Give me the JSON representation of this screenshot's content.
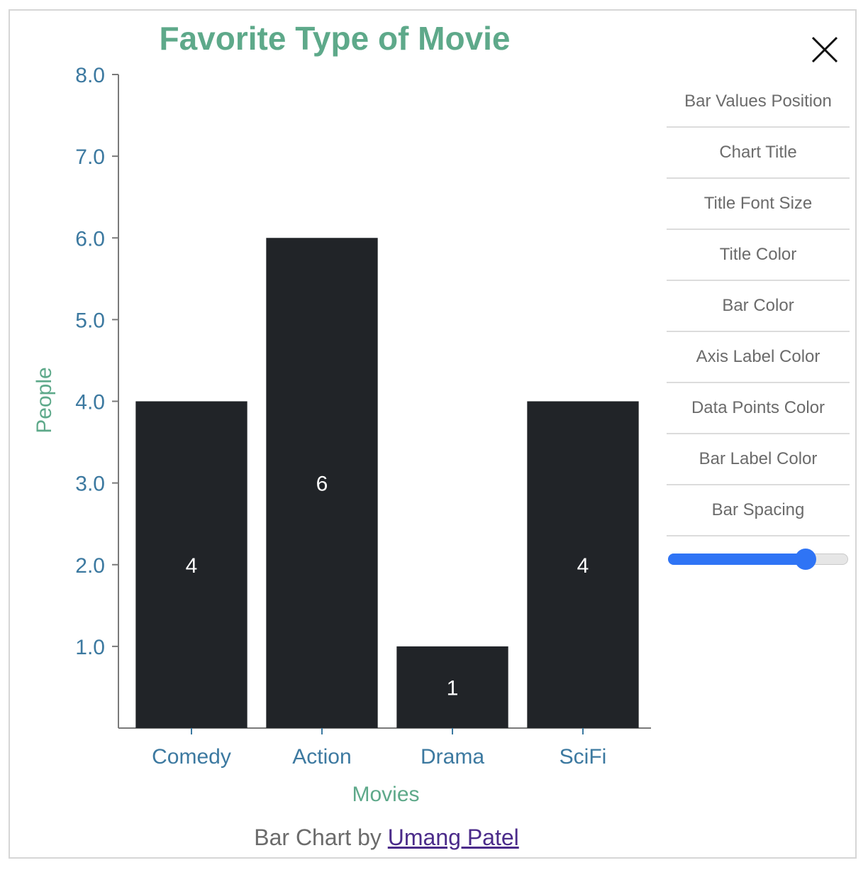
{
  "chart_data": {
    "type": "bar",
    "title": "Favorite Type of Movie",
    "xlabel": "Movies",
    "ylabel": "People",
    "categories": [
      "Comedy",
      "Action",
      "Drama",
      "SciFi"
    ],
    "values": [
      4,
      6,
      1,
      4
    ],
    "value_labels": [
      "4",
      "6",
      "1",
      "4"
    ],
    "ylim": [
      0,
      8
    ],
    "y_ticks": [
      "1.0",
      "2.0",
      "3.0",
      "4.0",
      "5.0",
      "6.0",
      "7.0",
      "8.0"
    ],
    "grid": false,
    "bar_value_position": "center",
    "colors": {
      "title": "#5ea98a",
      "axis_label": "#5ea98a",
      "tick_label": "#3c79a0",
      "bar": "#212428",
      "bar_label": "#ffffff",
      "axis_line": "#7a7a7a"
    }
  },
  "close_icon": "close-icon",
  "menu": {
    "items": [
      {
        "label": "Bar Values Position"
      },
      {
        "label": "Chart Title"
      },
      {
        "label": "Title Font Size"
      },
      {
        "label": "Title Color"
      },
      {
        "label": "Bar Color"
      },
      {
        "label": "Axis Label Color"
      },
      {
        "label": "Data Points Color"
      },
      {
        "label": "Bar Label Color"
      },
      {
        "label": "Bar Spacing"
      }
    ]
  },
  "bar_spacing_slider": {
    "value": 0.8,
    "color": "#2f74f5"
  },
  "footer": {
    "prefix": "Bar Chart by ",
    "author": "Umang Patel"
  }
}
